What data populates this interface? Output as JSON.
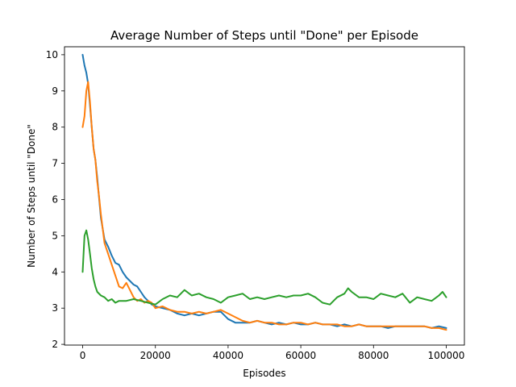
{
  "chart_data": {
    "type": "line",
    "title": "Average Number of Steps until \"Done\" per Episode",
    "xlabel": "Episodes",
    "ylabel": "Number of Steps until \"Done\"",
    "xlim": [
      -5000,
      105000
    ],
    "ylim": [
      1.98,
      10.22
    ],
    "xticks": [
      0,
      20000,
      40000,
      60000,
      80000,
      100000
    ],
    "xtick_labels": [
      "0",
      "20000",
      "40000",
      "60000",
      "80000",
      "100000"
    ],
    "yticks": [
      2,
      3,
      4,
      5,
      6,
      7,
      8,
      9,
      10
    ],
    "ytick_labels": [
      "2",
      "3",
      "4",
      "5",
      "6",
      "7",
      "8",
      "9",
      "10"
    ],
    "grid": false,
    "legend": "none",
    "series": [
      {
        "color": "#1f77b4",
        "x": [
          0,
          500,
          1000,
          1500,
          2000,
          2500,
          3000,
          3500,
          4000,
          5000,
          6000,
          7000,
          8000,
          9000,
          10000,
          11000,
          12000,
          13000,
          14000,
          15000,
          16000,
          17000,
          18000,
          19000,
          20000,
          22000,
          24000,
          26000,
          28000,
          30000,
          32000,
          34000,
          36000,
          38000,
          40000,
          42000,
          44000,
          46000,
          48000,
          50000,
          52000,
          54000,
          56000,
          58000,
          60000,
          62000,
          64000,
          66000,
          68000,
          70000,
          72000,
          74000,
          76000,
          78000,
          80000,
          82000,
          84000,
          86000,
          88000,
          90000,
          92000,
          94000,
          96000,
          98000,
          100000
        ],
        "y": [
          10.0,
          9.7,
          9.5,
          9.2,
          8.6,
          8.0,
          7.4,
          7.1,
          6.6,
          5.5,
          4.9,
          4.7,
          4.45,
          4.25,
          4.2,
          4.0,
          3.85,
          3.75,
          3.65,
          3.6,
          3.45,
          3.3,
          3.2,
          3.1,
          3.05,
          3.0,
          2.95,
          2.85,
          2.8,
          2.85,
          2.8,
          2.85,
          2.9,
          2.9,
          2.7,
          2.6,
          2.6,
          2.6,
          2.65,
          2.6,
          2.55,
          2.6,
          2.55,
          2.6,
          2.55,
          2.55,
          2.6,
          2.55,
          2.55,
          2.5,
          2.55,
          2.5,
          2.55,
          2.5,
          2.5,
          2.5,
          2.45,
          2.5,
          2.5,
          2.5,
          2.5,
          2.5,
          2.45,
          2.5,
          2.45
        ]
      },
      {
        "color": "#ff7f0e",
        "x": [
          0,
          500,
          1000,
          1500,
          2000,
          2500,
          3000,
          3500,
          4000,
          4500,
          5000,
          6000,
          7000,
          8000,
          9000,
          10000,
          11000,
          12000,
          13000,
          14000,
          15000,
          16000,
          17000,
          18000,
          19000,
          20000,
          22000,
          24000,
          26000,
          28000,
          30000,
          32000,
          34000,
          36000,
          38000,
          40000,
          42000,
          44000,
          46000,
          48000,
          50000,
          52000,
          54000,
          56000,
          58000,
          60000,
          62000,
          64000,
          66000,
          68000,
          70000,
          72000,
          74000,
          76000,
          78000,
          80000,
          82000,
          84000,
          86000,
          88000,
          90000,
          92000,
          94000,
          96000,
          98000,
          100000
        ],
        "y": [
          8.0,
          8.3,
          9.0,
          9.25,
          8.7,
          8.0,
          7.4,
          7.1,
          6.5,
          6.1,
          5.6,
          4.8,
          4.5,
          4.2,
          3.9,
          3.6,
          3.55,
          3.7,
          3.5,
          3.3,
          3.2,
          3.25,
          3.15,
          3.2,
          3.15,
          3.0,
          3.05,
          2.95,
          2.9,
          2.9,
          2.85,
          2.9,
          2.85,
          2.9,
          2.95,
          2.85,
          2.75,
          2.65,
          2.6,
          2.65,
          2.6,
          2.6,
          2.55,
          2.55,
          2.6,
          2.6,
          2.55,
          2.6,
          2.55,
          2.55,
          2.55,
          2.5,
          2.5,
          2.55,
          2.5,
          2.5,
          2.5,
          2.5,
          2.5,
          2.5,
          2.5,
          2.5,
          2.5,
          2.45,
          2.45,
          2.4
        ]
      },
      {
        "color": "#2ca02c",
        "x": [
          0,
          500,
          1000,
          1500,
          2000,
          2500,
          3000,
          3500,
          4000,
          5000,
          6000,
          7000,
          8000,
          9000,
          10000,
          12000,
          14000,
          16000,
          18000,
          20000,
          22000,
          24000,
          26000,
          28000,
          30000,
          32000,
          34000,
          36000,
          38000,
          40000,
          42000,
          44000,
          46000,
          48000,
          50000,
          52000,
          54000,
          56000,
          58000,
          60000,
          62000,
          64000,
          66000,
          68000,
          70000,
          72000,
          73000,
          74000,
          76000,
          78000,
          80000,
          82000,
          84000,
          86000,
          88000,
          90000,
          92000,
          94000,
          96000,
          98000,
          99000,
          100000
        ],
        "y": [
          4.0,
          5.0,
          5.15,
          4.9,
          4.5,
          4.1,
          3.8,
          3.6,
          3.45,
          3.35,
          3.3,
          3.2,
          3.25,
          3.15,
          3.2,
          3.2,
          3.25,
          3.2,
          3.15,
          3.1,
          3.25,
          3.35,
          3.3,
          3.5,
          3.35,
          3.4,
          3.3,
          3.25,
          3.15,
          3.3,
          3.35,
          3.4,
          3.25,
          3.3,
          3.25,
          3.3,
          3.35,
          3.3,
          3.35,
          3.35,
          3.4,
          3.3,
          3.15,
          3.1,
          3.3,
          3.4,
          3.55,
          3.45,
          3.3,
          3.3,
          3.25,
          3.4,
          3.35,
          3.3,
          3.4,
          3.15,
          3.3,
          3.25,
          3.2,
          3.35,
          3.45,
          3.3
        ]
      }
    ]
  }
}
